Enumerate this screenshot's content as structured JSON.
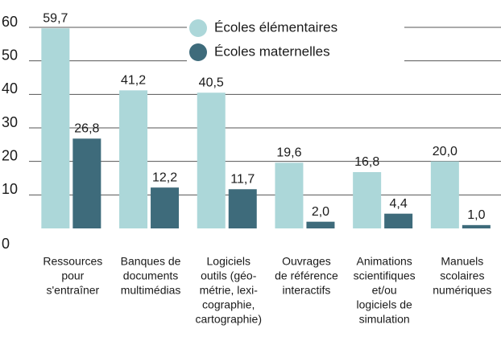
{
  "chart_data": {
    "type": "bar",
    "categories": [
      [
        "Ressources",
        "pour",
        "s'entraîner"
      ],
      [
        "Banques de",
        "documents",
        "multimédias"
      ],
      [
        "Logiciels",
        "outils (géo-",
        "métrie, lexi-",
        "cographie,",
        "cartographie)"
      ],
      [
        "Ouvrages",
        "de référence",
        "interactifs"
      ],
      [
        "Animations",
        "scientifiques",
        "et/ou",
        "logiciels de",
        "simulation"
      ],
      [
        "Manuels",
        "scolaires",
        "numériques"
      ]
    ],
    "series": [
      {
        "name": "Écoles élémentaires",
        "color": "#acd7d9",
        "values": [
          59.7,
          41.2,
          40.5,
          19.6,
          16.8,
          20.0
        ],
        "value_labels": [
          "59,7",
          "41,2",
          "40,5",
          "19,6",
          "16,8",
          "20,0"
        ]
      },
      {
        "name": "Écoles maternelles",
        "color": "#3e6b7b",
        "values": [
          26.8,
          12.2,
          11.7,
          2.0,
          4.4,
          1.0
        ],
        "value_labels": [
          "26,8",
          "12,2",
          "11,7",
          "2,0",
          "4,4",
          "1,0"
        ]
      }
    ],
    "ylim": [
      0,
      60
    ],
    "yticks": [
      0,
      10,
      20,
      30,
      40,
      50,
      60
    ],
    "grid": true,
    "legend": "top-center"
  }
}
